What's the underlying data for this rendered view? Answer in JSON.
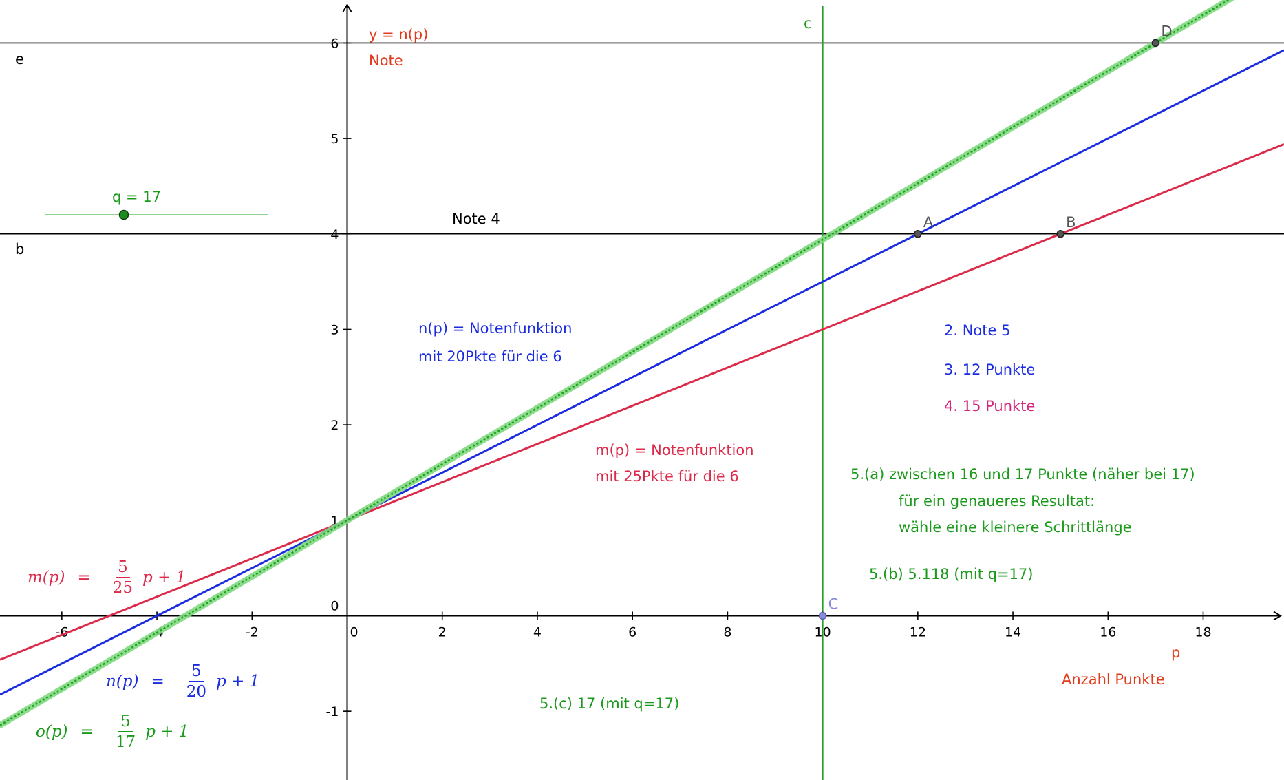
{
  "colors": {
    "axis": "#000000",
    "n_line": "#1a2be0",
    "m_line": "#dc2a4a",
    "o_line": "#22a022",
    "o_highlight": "#7fd97f",
    "c_line": "#1fa11f",
    "label_red": "#e03a1c",
    "label_blue": "#1a2be0",
    "label_magenta": "#d4267a",
    "label_green": "#1a9a1a",
    "point_fill": "#555555",
    "point_c": "#8a8adc"
  },
  "chart_data": {
    "type": "line",
    "xlim": [
      -7.3,
      19.7
    ],
    "ylim": [
      -1.72,
      6.45
    ],
    "x_ticks": [
      -6,
      -4,
      -2,
      0,
      2,
      4,
      6,
      8,
      10,
      12,
      14,
      16,
      18
    ],
    "y_ticks": [
      -1,
      0,
      1,
      2,
      3,
      4,
      5,
      6
    ],
    "x_tick_labels": [
      "-6",
      "-4",
      "-2",
      "0",
      "2",
      "4",
      "6",
      "8",
      "10",
      "12",
      "14",
      "16",
      "18"
    ],
    "y_tick_labels": [
      "-1",
      "0",
      "1",
      "2",
      "3",
      "4",
      "5",
      "6"
    ],
    "x_axis_label": "p",
    "x_axis_caption": "Anzahl Punkte",
    "y_axis_label": "y = n(p)",
    "y_axis_caption": "Note",
    "series": [
      {
        "name": "n(p)",
        "slope": 0.25,
        "intercept": 1,
        "color_key": "n_line"
      },
      {
        "name": "m(p)",
        "slope": 0.2,
        "intercept": 1,
        "color_key": "m_line"
      },
      {
        "name": "o(p)",
        "slope": 0.294118,
        "intercept": 1,
        "color_key": "o_line",
        "highlighted": true
      }
    ],
    "horizontal_lines": [
      {
        "name": "e",
        "y": 6
      },
      {
        "name": "b",
        "y": 4
      }
    ],
    "vertical_lines": [
      {
        "name": "c",
        "x": 10
      }
    ],
    "points": [
      {
        "name": "A",
        "x": 12,
        "y": 4
      },
      {
        "name": "B",
        "x": 15,
        "y": 4
      },
      {
        "name": "C",
        "x": 10,
        "y": 0
      },
      {
        "name": "D",
        "x": 17,
        "y": 6
      }
    ]
  },
  "slider": {
    "label": "q = 17",
    "value": 17
  },
  "texts": {
    "line_e_label": "e",
    "line_b_label": "b",
    "line_c_label": "c",
    "note4": "Note 4",
    "n_desc_line1": "n(p) = Notenfunktion",
    "n_desc_line2": "mit 20Pkte für die 6",
    "m_desc_line1": "m(p) = Notenfunktion",
    "m_desc_line2": "mit 25Pkte für die 6",
    "ans2": "2.  Note 5",
    "ans3": "3.  12 Punkte",
    "ans4": "4.  15 Punkte",
    "ans5a_line1": "5.(a)  zwischen 16 und 17 Punkte (näher bei 17)",
    "ans5a_line2": "für ein genaueres Resultat:",
    "ans5a_line3": "wähle eine kleinere Schrittlänge",
    "ans5b": "5.(b)  5.118 (mit q=17)",
    "ans5c": "5.(c)  17 (mit q=17)"
  },
  "formulas": {
    "m": {
      "lhs": "m(p)",
      "eq": "=",
      "num": "5",
      "den": "25",
      "rhs": "p + 1"
    },
    "n": {
      "lhs": "n(p)",
      "eq": "=",
      "num": "5",
      "den": "20",
      "rhs": "p + 1"
    },
    "o": {
      "lhs": "o(p)",
      "eq": "=",
      "num": "5",
      "den": "17",
      "rhs": "p + 1"
    }
  }
}
